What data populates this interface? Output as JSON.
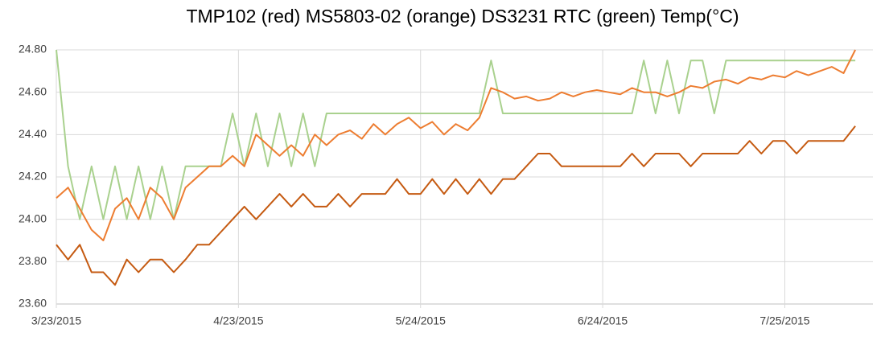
{
  "chart_data": {
    "type": "line",
    "title": "TMP102 (red)   MS5803-02 (orange)   DS3231 RTC (green)    Temp(°C)",
    "x": [
      "2015-03-23",
      "2015-03-25",
      "2015-03-27",
      "2015-03-29",
      "2015-03-31",
      "2015-04-02",
      "2015-04-04",
      "2015-04-06",
      "2015-04-08",
      "2015-04-10",
      "2015-04-12",
      "2015-04-14",
      "2015-04-16",
      "2015-04-18",
      "2015-04-20",
      "2015-04-22",
      "2015-04-24",
      "2015-04-26",
      "2015-04-28",
      "2015-04-30",
      "2015-05-02",
      "2015-05-04",
      "2015-05-06",
      "2015-05-08",
      "2015-05-10",
      "2015-05-12",
      "2015-05-14",
      "2015-05-16",
      "2015-05-18",
      "2015-05-20",
      "2015-05-22",
      "2015-05-24",
      "2015-05-26",
      "2015-05-28",
      "2015-05-30",
      "2015-06-01",
      "2015-06-03",
      "2015-06-05",
      "2015-06-07",
      "2015-06-09",
      "2015-06-11",
      "2015-06-13",
      "2015-06-15",
      "2015-06-17",
      "2015-06-19",
      "2015-06-21",
      "2015-06-23",
      "2015-06-25",
      "2015-06-27",
      "2015-06-29",
      "2015-07-01",
      "2015-07-03",
      "2015-07-05",
      "2015-07-07",
      "2015-07-09",
      "2015-07-11",
      "2015-07-13",
      "2015-07-15",
      "2015-07-17",
      "2015-07-19",
      "2015-07-21",
      "2015-07-23",
      "2015-07-25",
      "2015-07-27",
      "2015-07-29",
      "2015-07-31",
      "2015-08-02",
      "2015-08-04",
      "2015-08-06"
    ],
    "series": [
      {
        "color": "#c55a11",
        "values": [
          23.88,
          23.81,
          23.88,
          23.75,
          23.75,
          23.69,
          23.81,
          23.75,
          23.81,
          23.81,
          23.75,
          23.81,
          23.88,
          23.88,
          23.94,
          24.0,
          24.06,
          24.0,
          24.06,
          24.12,
          24.06,
          24.12,
          24.06,
          24.06,
          24.12,
          24.06,
          24.12,
          24.12,
          24.12,
          24.19,
          24.12,
          24.12,
          24.19,
          24.12,
          24.19,
          24.12,
          24.19,
          24.12,
          24.19,
          24.19,
          24.25,
          24.31,
          24.31,
          24.25,
          24.25,
          24.25,
          24.25,
          24.25,
          24.25,
          24.31,
          24.25,
          24.31,
          24.31,
          24.31,
          24.25,
          24.31,
          24.31,
          24.31,
          24.31,
          24.37,
          24.31,
          24.37,
          24.37,
          24.31,
          24.37,
          24.37,
          24.37,
          24.37,
          24.44
        ]
      },
      {
        "color": "#ed7d31",
        "values": [
          24.1,
          24.15,
          24.05,
          23.95,
          23.9,
          24.05,
          24.1,
          24.0,
          24.15,
          24.1,
          24.0,
          24.15,
          24.2,
          24.25,
          24.25,
          24.3,
          24.25,
          24.4,
          24.35,
          24.3,
          24.35,
          24.3,
          24.4,
          24.35,
          24.4,
          24.42,
          24.38,
          24.45,
          24.4,
          24.45,
          24.48,
          24.43,
          24.46,
          24.4,
          24.45,
          24.42,
          24.48,
          24.62,
          24.6,
          24.57,
          24.58,
          24.56,
          24.57,
          24.6,
          24.58,
          24.6,
          24.61,
          24.6,
          24.59,
          24.62,
          24.6,
          24.6,
          24.58,
          24.6,
          24.63,
          24.62,
          24.65,
          24.66,
          24.64,
          24.67,
          24.66,
          24.68,
          24.67,
          24.7,
          24.68,
          24.7,
          24.72,
          24.69,
          24.8
        ]
      },
      {
        "color": "#a9d18e",
        "values": [
          24.8,
          24.25,
          24.0,
          24.25,
          24.0,
          24.25,
          24.0,
          24.25,
          24.0,
          24.25,
          24.0,
          24.25,
          24.25,
          24.25,
          24.25,
          24.5,
          24.25,
          24.5,
          24.25,
          24.5,
          24.25,
          24.5,
          24.25,
          24.5,
          24.5,
          24.5,
          24.5,
          24.5,
          24.5,
          24.5,
          24.5,
          24.5,
          24.5,
          24.5,
          24.5,
          24.5,
          24.5,
          24.75,
          24.5,
          24.5,
          24.5,
          24.5,
          24.5,
          24.5,
          24.5,
          24.5,
          24.5,
          24.5,
          24.5,
          24.5,
          24.75,
          24.5,
          24.75,
          24.5,
          24.75,
          24.75,
          24.5,
          24.75,
          24.75,
          24.75,
          24.75,
          24.75,
          24.75,
          24.75,
          24.75,
          24.75,
          24.75,
          24.75,
          24.75
        ]
      }
    ],
    "xlim": [
      "2015-03-23",
      "2015-08-09"
    ],
    "xticks": [
      {
        "value": "2015-03-23",
        "label": "3/23/2015"
      },
      {
        "value": "2015-04-23",
        "label": "4/23/2015"
      },
      {
        "value": "2015-05-24",
        "label": "5/24/2015"
      },
      {
        "value": "2015-06-24",
        "label": "6/24/2015"
      },
      {
        "value": "2015-07-25",
        "label": "7/25/2015"
      }
    ],
    "ylim": [
      23.6,
      24.8
    ],
    "yticks": [
      {
        "value": 23.6,
        "label": "23.60"
      },
      {
        "value": 23.8,
        "label": "23.80"
      },
      {
        "value": 24.0,
        "label": "24.00"
      },
      {
        "value": 24.2,
        "label": "24.20"
      },
      {
        "value": 24.4,
        "label": "24.40"
      },
      {
        "value": 24.6,
        "label": "24.60"
      },
      {
        "value": 24.8,
        "label": "24.80"
      }
    ],
    "grid": true
  }
}
